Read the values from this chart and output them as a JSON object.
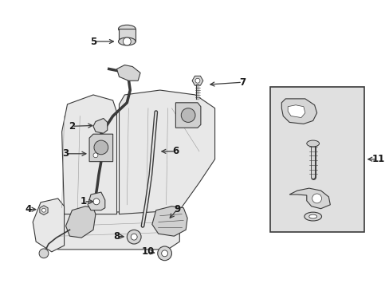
{
  "title": "",
  "background_color": "#ffffff",
  "fig_width": 4.89,
  "fig_height": 3.6,
  "dpi": 100,
  "line_color": "#3a3a3a",
  "light_gray": "#c8c8c8",
  "mid_gray": "#b0b0b0",
  "seat_fill": "#e8e8e8",
  "box_fill": "#e0e0e0"
}
